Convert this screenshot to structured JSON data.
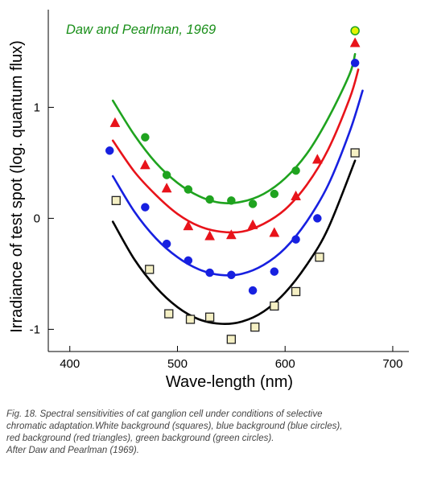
{
  "chart_data": {
    "type": "scatter",
    "title": "Daw and Pearlman, 1969",
    "xlabel": "Wave-length (nm)",
    "ylabel": "Irradiance of test spot (log. quantum flux)",
    "xlim": [
      380,
      715
    ],
    "ylim": [
      -1.2,
      1.88
    ],
    "xticks": [
      400,
      500,
      600,
      700
    ],
    "yticks": [
      -1,
      0,
      1
    ],
    "xtick_labels": [
      "400",
      "500",
      "600",
      "700"
    ],
    "ytick_labels": [
      "-1",
      "0",
      "1"
    ],
    "grid": false,
    "legend": "none",
    "series": [
      {
        "marker": "circle",
        "color": "#1fa31f",
        "points": [
          [
            470,
            0.73
          ],
          [
            490,
            0.39
          ],
          [
            510,
            0.26
          ],
          [
            530,
            0.17
          ],
          [
            550,
            0.16
          ],
          [
            570,
            0.13
          ],
          [
            590,
            0.22
          ],
          [
            610,
            0.43
          ],
          [
            665,
            1.69
          ]
        ],
        "fit": [
          [
            440,
            1.06
          ],
          [
            460,
            0.75
          ],
          [
            480,
            0.5
          ],
          [
            500,
            0.32
          ],
          [
            520,
            0.2
          ],
          [
            540,
            0.14
          ],
          [
            560,
            0.15
          ],
          [
            580,
            0.22
          ],
          [
            600,
            0.36
          ],
          [
            620,
            0.58
          ],
          [
            640,
            0.9
          ],
          [
            660,
            1.3
          ],
          [
            665,
            1.48
          ]
        ]
      },
      {
        "marker": "triangle",
        "color": "#e8131a",
        "points": [
          [
            442,
            0.86
          ],
          [
            470,
            0.48
          ],
          [
            490,
            0.27
          ],
          [
            510,
            -0.07
          ],
          [
            530,
            -0.16
          ],
          [
            550,
            -0.15
          ],
          [
            570,
            -0.06
          ],
          [
            590,
            -0.13
          ],
          [
            610,
            0.2
          ],
          [
            630,
            0.53
          ],
          [
            665,
            1.58
          ]
        ],
        "fit": [
          [
            440,
            0.7
          ],
          [
            460,
            0.42
          ],
          [
            480,
            0.21
          ],
          [
            500,
            0.04
          ],
          [
            520,
            -0.07
          ],
          [
            540,
            -0.12
          ],
          [
            560,
            -0.12
          ],
          [
            580,
            -0.05
          ],
          [
            600,
            0.08
          ],
          [
            620,
            0.3
          ],
          [
            640,
            0.62
          ],
          [
            660,
            1.08
          ],
          [
            668,
            1.34
          ]
        ]
      },
      {
        "marker": "circle",
        "color": "#1720e0",
        "points": [
          [
            437,
            0.61
          ],
          [
            470,
            0.1
          ],
          [
            490,
            -0.23
          ],
          [
            510,
            -0.38
          ],
          [
            530,
            -0.49
          ],
          [
            550,
            -0.51
          ],
          [
            570,
            -0.65
          ],
          [
            590,
            -0.48
          ],
          [
            610,
            -0.19
          ],
          [
            630,
            0.0
          ],
          [
            665,
            1.4
          ]
        ],
        "fit": [
          [
            440,
            0.38
          ],
          [
            460,
            0.06
          ],
          [
            480,
            -0.18
          ],
          [
            500,
            -0.35
          ],
          [
            520,
            -0.46
          ],
          [
            540,
            -0.51
          ],
          [
            560,
            -0.5
          ],
          [
            580,
            -0.42
          ],
          [
            600,
            -0.27
          ],
          [
            620,
            -0.03
          ],
          [
            640,
            0.3
          ],
          [
            660,
            0.78
          ],
          [
            672,
            1.15
          ]
        ]
      },
      {
        "marker": "square",
        "color": "#f5f0c4",
        "stroke": "#222222",
        "points": [
          [
            443,
            0.16
          ],
          [
            474,
            -0.46
          ],
          [
            492,
            -0.86
          ],
          [
            512,
            -0.91
          ],
          [
            530,
            -0.89
          ],
          [
            550,
            -1.09
          ],
          [
            572,
            -0.98
          ],
          [
            590,
            -0.79
          ],
          [
            610,
            -0.66
          ],
          [
            632,
            -0.35
          ],
          [
            665,
            0.59
          ]
        ],
        "fit": [
          [
            440,
            -0.03
          ],
          [
            460,
            -0.37
          ],
          [
            480,
            -0.62
          ],
          [
            500,
            -0.8
          ],
          [
            520,
            -0.91
          ],
          [
            540,
            -0.95
          ],
          [
            560,
            -0.93
          ],
          [
            580,
            -0.84
          ],
          [
            600,
            -0.67
          ],
          [
            620,
            -0.42
          ],
          [
            640,
            -0.09
          ],
          [
            665,
            0.52
          ]
        ]
      }
    ]
  },
  "caption": {
    "lines": [
      "Fig. 18. Spectral sensitivities of cat ganglion cell under conditions of selective",
      "chromatic adaptation.White background (squares), blue background (blue circles),",
      " red background (red triangles), green background (green circles).",
      "After Daw and Pearlman (1969)."
    ]
  }
}
